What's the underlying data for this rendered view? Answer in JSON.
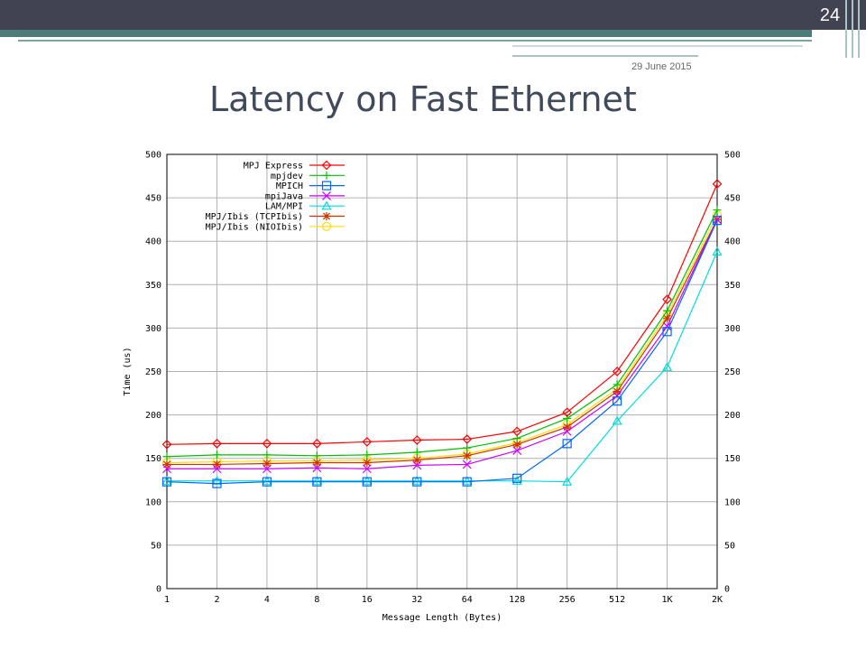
{
  "slide": {
    "number": "24",
    "date": "29 June 2015",
    "title": "Latency on Fast Ethernet"
  },
  "colors": {
    "header_bar": "#414353",
    "header_band": "#4d7b7a",
    "title_text": "#404a5a"
  },
  "chart_data": {
    "type": "line",
    "xlabel": "Message Length (Bytes)",
    "ylabel": "Time (us)",
    "categories": [
      "1",
      "2",
      "4",
      "8",
      "16",
      "32",
      "64",
      "128",
      "256",
      "512",
      "1K",
      "2K"
    ],
    "ylim": [
      0,
      500
    ],
    "yticks": [
      0,
      50,
      100,
      150,
      200,
      250,
      300,
      350,
      400,
      450,
      500
    ],
    "grid": true,
    "legend_position": "top-left",
    "right_axis_mirrored": true,
    "series": [
      {
        "name": "MPJ Express",
        "color": "#ff0000",
        "marker": "diamond",
        "values": [
          166,
          167,
          167,
          167,
          169,
          171,
          172,
          181,
          203,
          250,
          333,
          466
        ]
      },
      {
        "name": "mpjdev",
        "color": "#00c000",
        "marker": "plus",
        "values": [
          152,
          154,
          154,
          153,
          154,
          157,
          162,
          173,
          196,
          235,
          320,
          436
        ]
      },
      {
        "name": "MPICH",
        "color": "#0066ff",
        "marker": "square",
        "values": [
          123,
          121,
          123,
          123,
          123,
          123,
          123,
          127,
          167,
          216,
          296,
          424
        ]
      },
      {
        "name": "mpiJava",
        "color": "#cc00ff",
        "marker": "x",
        "values": [
          138,
          138,
          138,
          139,
          138,
          142,
          143,
          159,
          181,
          222,
          302,
          425
        ]
      },
      {
        "name": "LAM/MPI",
        "color": "#00dddd",
        "marker": "triangle",
        "values": [
          124,
          124,
          124,
          124,
          124,
          124,
          124,
          124,
          123,
          193,
          255,
          388
        ]
      },
      {
        "name": "MPJ/Ibis (TCPIbis)",
        "color": "#cc3300",
        "marker": "star",
        "values": [
          143,
          143,
          144,
          145,
          145,
          148,
          153,
          166,
          186,
          227,
          311,
          425
        ]
      },
      {
        "name": "MPJ/Ibis (NIOIbis)",
        "color": "#ffdd00",
        "marker": "circle",
        "values": [
          145,
          146,
          147,
          147,
          148,
          150,
          155,
          168,
          189,
          230,
          315,
          430
        ]
      }
    ]
  }
}
